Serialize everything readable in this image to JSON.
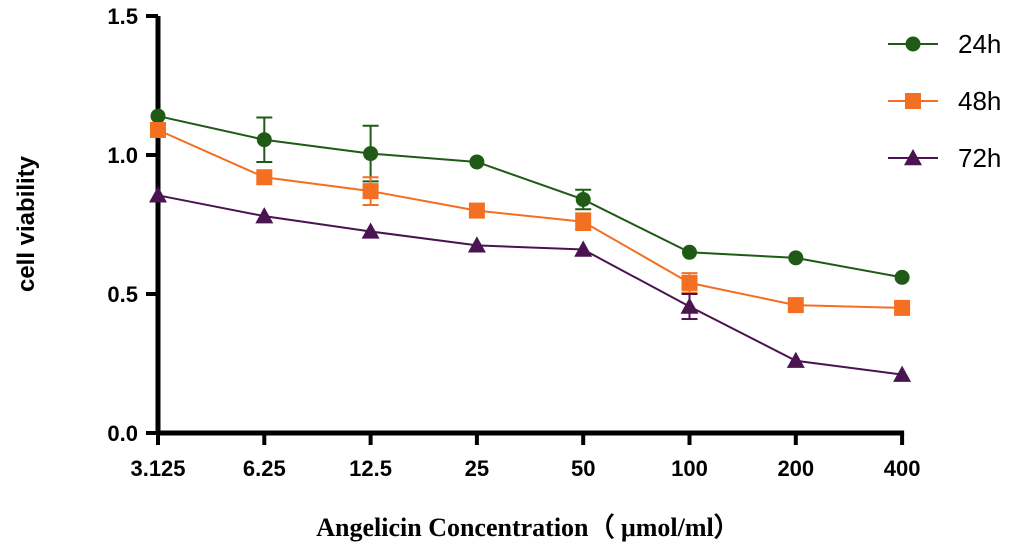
{
  "chart_data": {
    "type": "line",
    "title": "",
    "xlabel": "Angelicin Concentration（ μmol/ml）",
    "ylabel": "cell viability",
    "categories": [
      "3.125",
      "6.25",
      "12.5",
      "25",
      "50",
      "100",
      "200",
      "400"
    ],
    "ylim": [
      0,
      1.5
    ],
    "yticks": [
      0.0,
      0.5,
      1.0,
      1.5
    ],
    "ytick_labels": [
      "0.0",
      "0.5",
      "1.0",
      "1.5"
    ],
    "grid": false,
    "legend_position": "top-right",
    "series": [
      {
        "name": "24h",
        "marker": "circle",
        "color": "#1f5a16",
        "values": [
          1.14,
          1.055,
          1.005,
          0.975,
          0.84,
          0.65,
          0.63,
          0.56
        ],
        "errors": [
          0.01,
          0.08,
          0.1,
          0.01,
          0.035,
          0.01,
          0.01,
          0.01
        ]
      },
      {
        "name": "48h",
        "marker": "square",
        "color": "#f36f21",
        "values": [
          1.09,
          0.92,
          0.87,
          0.8,
          0.76,
          0.54,
          0.46,
          0.45
        ],
        "errors": [
          0.01,
          0.01,
          0.05,
          0.01,
          0.03,
          0.035,
          0.01,
          0.01
        ]
      },
      {
        "name": "72h",
        "marker": "triangle",
        "color": "#4a1450",
        "values": [
          0.855,
          0.78,
          0.725,
          0.675,
          0.66,
          0.455,
          0.26,
          0.21
        ],
        "errors": [
          0.01,
          0.01,
          0.01,
          0.01,
          0.01,
          0.045,
          0.01,
          0.01
        ]
      }
    ]
  }
}
